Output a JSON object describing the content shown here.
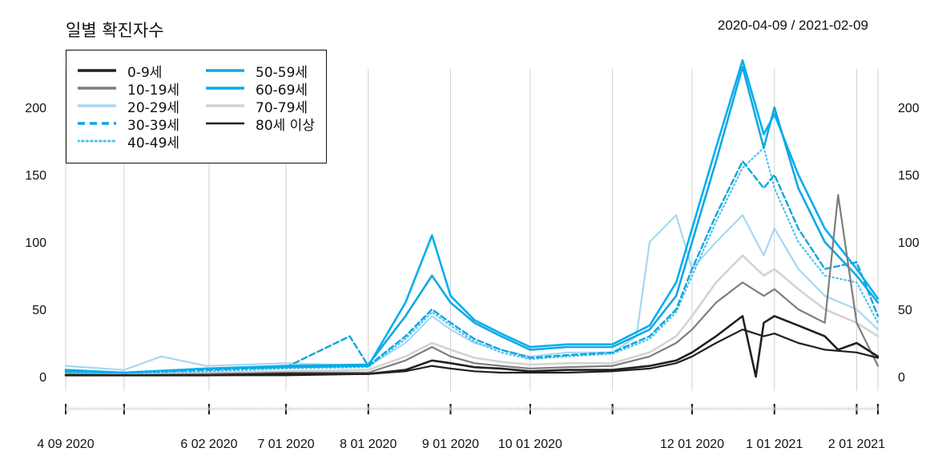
{
  "title": "일별 확진자수",
  "date_range": "2020-04-09 / 2021-02-09",
  "colors": {
    "0-9": "#231f20",
    "10-19": "#7d7d7d",
    "20-29": "#a6d8f4",
    "30-39": "#0ea5e0",
    "40-49": "#4cc3f0",
    "50-59": "#12a8e0",
    "60-69": "#00aeef",
    "70-79": "#d3d3d3",
    "80+": "#231f20"
  },
  "chart_data": {
    "type": "line",
    "title": "일별 확진자수",
    "subtitle": "2020-04-09 / 2021-02-09",
    "xlabel": "",
    "ylabel": "",
    "x_range": [
      "2020-04-09",
      "2021-02-09"
    ],
    "ylim": [
      0,
      235
    ],
    "y_ticks": [
      0,
      50,
      100,
      150,
      200
    ],
    "x_ticks": [
      {
        "date": "2020-04-09",
        "label": "4 09 2020"
      },
      {
        "date": "2020-05-01",
        "label": ""
      },
      {
        "date": "2020-06-02",
        "label": "6 02 2020"
      },
      {
        "date": "2020-07-01",
        "label": "7 01 2020"
      },
      {
        "date": "2020-08-01",
        "label": "8 01 2020"
      },
      {
        "date": "2020-09-01",
        "label": "9 01 2020"
      },
      {
        "date": "2020-10-01",
        "label": "10 01 2020"
      },
      {
        "date": "2020-11-01",
        "label": ""
      },
      {
        "date": "2020-12-01",
        "label": "12 01 2020"
      },
      {
        "date": "2021-01-01",
        "label": "1 01 2021"
      },
      {
        "date": "2021-02-01",
        "label": "2 01 2021"
      },
      {
        "date": "2021-02-09",
        "label": ""
      }
    ],
    "grid": "vertical",
    "legend_position": "top-left",
    "series": [
      {
        "name": "0-9세",
        "key": "0-9",
        "style": "solid-thick",
        "points": [
          [
            "2020-04-09",
            1
          ],
          [
            "2020-05-01",
            1
          ],
          [
            "2020-06-01",
            1
          ],
          [
            "2020-07-01",
            2
          ],
          [
            "2020-08-01",
            2
          ],
          [
            "2020-08-15",
            5
          ],
          [
            "2020-08-25",
            12
          ],
          [
            "2020-09-01",
            10
          ],
          [
            "2020-09-10",
            7
          ],
          [
            "2020-09-20",
            6
          ],
          [
            "2020-10-01",
            4
          ],
          [
            "2020-10-15",
            5
          ],
          [
            "2020-11-01",
            5
          ],
          [
            "2020-11-15",
            8
          ],
          [
            "2020-11-25",
            12
          ],
          [
            "2020-12-01",
            18
          ],
          [
            "2020-12-10",
            30
          ],
          [
            "2020-12-20",
            45
          ],
          [
            "2020-12-25",
            0
          ],
          [
            "2020-12-28",
            40
          ],
          [
            "2021-01-01",
            45
          ],
          [
            "2021-01-10",
            38
          ],
          [
            "2021-01-20",
            30
          ],
          [
            "2021-01-25",
            20
          ],
          [
            "2021-02-01",
            25
          ],
          [
            "2021-02-09",
            15
          ]
        ]
      },
      {
        "name": "10-19세",
        "key": "10-19",
        "style": "solid",
        "points": [
          [
            "2020-04-09",
            2
          ],
          [
            "2020-05-01",
            1
          ],
          [
            "2020-06-01",
            2
          ],
          [
            "2020-07-01",
            3
          ],
          [
            "2020-08-01",
            3
          ],
          [
            "2020-08-15",
            12
          ],
          [
            "2020-08-25",
            22
          ],
          [
            "2020-09-01",
            15
          ],
          [
            "2020-09-10",
            10
          ],
          [
            "2020-09-20",
            8
          ],
          [
            "2020-10-01",
            6
          ],
          [
            "2020-10-15",
            7
          ],
          [
            "2020-11-01",
            8
          ],
          [
            "2020-11-15",
            15
          ],
          [
            "2020-11-25",
            25
          ],
          [
            "2020-12-01",
            35
          ],
          [
            "2020-12-10",
            55
          ],
          [
            "2020-12-20",
            70
          ],
          [
            "2020-12-28",
            60
          ],
          [
            "2021-01-01",
            65
          ],
          [
            "2021-01-10",
            50
          ],
          [
            "2021-01-20",
            40
          ],
          [
            "2021-01-25",
            135
          ],
          [
            "2021-02-01",
            40
          ],
          [
            "2021-02-09",
            8
          ]
        ]
      },
      {
        "name": "20-29세",
        "key": "20-29",
        "style": "solid",
        "points": [
          [
            "2020-04-09",
            8
          ],
          [
            "2020-05-01",
            5
          ],
          [
            "2020-05-15",
            15
          ],
          [
            "2020-06-01",
            8
          ],
          [
            "2020-07-01",
            10
          ],
          [
            "2020-08-01",
            8
          ],
          [
            "2020-08-15",
            25
          ],
          [
            "2020-08-25",
            45
          ],
          [
            "2020-09-01",
            35
          ],
          [
            "2020-09-10",
            25
          ],
          [
            "2020-09-20",
            20
          ],
          [
            "2020-10-01",
            15
          ],
          [
            "2020-10-15",
            18
          ],
          [
            "2020-11-01",
            18
          ],
          [
            "2020-11-10",
            30
          ],
          [
            "2020-11-15",
            100
          ],
          [
            "2020-11-25",
            120
          ],
          [
            "2020-12-01",
            80
          ],
          [
            "2020-12-10",
            100
          ],
          [
            "2020-12-20",
            120
          ],
          [
            "2020-12-28",
            90
          ],
          [
            "2021-01-01",
            110
          ],
          [
            "2021-01-10",
            80
          ],
          [
            "2021-01-20",
            60
          ],
          [
            "2021-02-01",
            50
          ],
          [
            "2021-02-09",
            35
          ]
        ]
      },
      {
        "name": "30-39세",
        "key": "30-39",
        "style": "dashed",
        "points": [
          [
            "2020-04-09",
            4
          ],
          [
            "2020-05-01",
            3
          ],
          [
            "2020-06-01",
            5
          ],
          [
            "2020-07-01",
            7
          ],
          [
            "2020-07-25",
            30
          ],
          [
            "2020-08-01",
            8
          ],
          [
            "2020-08-15",
            30
          ],
          [
            "2020-08-25",
            50
          ],
          [
            "2020-09-01",
            40
          ],
          [
            "2020-09-10",
            28
          ],
          [
            "2020-09-20",
            20
          ],
          [
            "2020-10-01",
            14
          ],
          [
            "2020-10-15",
            16
          ],
          [
            "2020-11-01",
            18
          ],
          [
            "2020-11-15",
            30
          ],
          [
            "2020-11-25",
            50
          ],
          [
            "2020-12-01",
            80
          ],
          [
            "2020-12-10",
            120
          ],
          [
            "2020-12-20",
            160
          ],
          [
            "2020-12-28",
            140
          ],
          [
            "2021-01-01",
            150
          ],
          [
            "2021-01-10",
            110
          ],
          [
            "2021-01-20",
            80
          ],
          [
            "2021-02-01",
            85
          ],
          [
            "2021-02-09",
            45
          ]
        ]
      },
      {
        "name": "40-49세",
        "key": "40-49",
        "style": "dotted",
        "points": [
          [
            "2020-04-09",
            3
          ],
          [
            "2020-05-01",
            2
          ],
          [
            "2020-06-01",
            4
          ],
          [
            "2020-07-01",
            6
          ],
          [
            "2020-08-01",
            7
          ],
          [
            "2020-08-15",
            28
          ],
          [
            "2020-08-25",
            48
          ],
          [
            "2020-09-01",
            38
          ],
          [
            "2020-09-10",
            26
          ],
          [
            "2020-09-20",
            18
          ],
          [
            "2020-10-01",
            13
          ],
          [
            "2020-10-15",
            15
          ],
          [
            "2020-11-01",
            17
          ],
          [
            "2020-11-15",
            28
          ],
          [
            "2020-11-25",
            48
          ],
          [
            "2020-12-01",
            75
          ],
          [
            "2020-12-10",
            115
          ],
          [
            "2020-12-20",
            155
          ],
          [
            "2020-12-28",
            170
          ],
          [
            "2021-01-01",
            140
          ],
          [
            "2021-01-10",
            100
          ],
          [
            "2021-01-20",
            75
          ],
          [
            "2021-02-01",
            70
          ],
          [
            "2021-02-09",
            40
          ]
        ]
      },
      {
        "name": "50-59세",
        "key": "50-59",
        "style": "solid-thick",
        "points": [
          [
            "2020-04-09",
            5
          ],
          [
            "2020-05-01",
            3
          ],
          [
            "2020-06-01",
            6
          ],
          [
            "2020-07-01",
            8
          ],
          [
            "2020-08-01",
            9
          ],
          [
            "2020-08-15",
            45
          ],
          [
            "2020-08-25",
            75
          ],
          [
            "2020-09-01",
            55
          ],
          [
            "2020-09-10",
            40
          ],
          [
            "2020-09-20",
            30
          ],
          [
            "2020-10-01",
            20
          ],
          [
            "2020-10-15",
            22
          ],
          [
            "2020-11-01",
            22
          ],
          [
            "2020-11-15",
            35
          ],
          [
            "2020-11-25",
            60
          ],
          [
            "2020-12-01",
            100
          ],
          [
            "2020-12-10",
            160
          ],
          [
            "2020-12-20",
            230
          ],
          [
            "2020-12-28",
            170
          ],
          [
            "2021-01-01",
            200
          ],
          [
            "2021-01-10",
            140
          ],
          [
            "2021-01-20",
            100
          ],
          [
            "2021-02-01",
            75
          ],
          [
            "2021-02-09",
            55
          ]
        ]
      },
      {
        "name": "60-69세",
        "key": "60-69",
        "style": "solid-thick",
        "points": [
          [
            "2020-04-09",
            4
          ],
          [
            "2020-05-01",
            3
          ],
          [
            "2020-06-01",
            6
          ],
          [
            "2020-07-01",
            7
          ],
          [
            "2020-08-01",
            8
          ],
          [
            "2020-08-15",
            55
          ],
          [
            "2020-08-25",
            105
          ],
          [
            "2020-09-01",
            60
          ],
          [
            "2020-09-10",
            42
          ],
          [
            "2020-09-20",
            32
          ],
          [
            "2020-10-01",
            22
          ],
          [
            "2020-10-15",
            24
          ],
          [
            "2020-11-01",
            24
          ],
          [
            "2020-11-15",
            38
          ],
          [
            "2020-11-25",
            70
          ],
          [
            "2020-12-01",
            110
          ],
          [
            "2020-12-10",
            170
          ],
          [
            "2020-12-20",
            235
          ],
          [
            "2020-12-28",
            180
          ],
          [
            "2021-01-01",
            195
          ],
          [
            "2021-01-10",
            150
          ],
          [
            "2021-01-20",
            110
          ],
          [
            "2021-02-01",
            80
          ],
          [
            "2021-02-09",
            58
          ]
        ]
      },
      {
        "name": "70-79세",
        "key": "70-79",
        "style": "solid-thick",
        "points": [
          [
            "2020-04-09",
            2
          ],
          [
            "2020-05-01",
            2
          ],
          [
            "2020-06-01",
            3
          ],
          [
            "2020-07-01",
            4
          ],
          [
            "2020-08-01",
            5
          ],
          [
            "2020-08-15",
            15
          ],
          [
            "2020-08-25",
            25
          ],
          [
            "2020-09-01",
            20
          ],
          [
            "2020-09-10",
            14
          ],
          [
            "2020-09-20",
            11
          ],
          [
            "2020-10-01",
            9
          ],
          [
            "2020-10-15",
            10
          ],
          [
            "2020-11-01",
            10
          ],
          [
            "2020-11-15",
            18
          ],
          [
            "2020-11-25",
            30
          ],
          [
            "2020-12-01",
            45
          ],
          [
            "2020-12-10",
            70
          ],
          [
            "2020-12-20",
            90
          ],
          [
            "2020-12-28",
            75
          ],
          [
            "2021-01-01",
            80
          ],
          [
            "2021-01-10",
            65
          ],
          [
            "2021-01-20",
            50
          ],
          [
            "2021-02-01",
            40
          ],
          [
            "2021-02-09",
            30
          ]
        ]
      },
      {
        "name": "80세 이상",
        "key": "80+",
        "style": "solid",
        "points": [
          [
            "2020-04-09",
            1
          ],
          [
            "2020-05-01",
            1
          ],
          [
            "2020-06-01",
            1
          ],
          [
            "2020-07-01",
            1
          ],
          [
            "2020-08-01",
            2
          ],
          [
            "2020-08-15",
            4
          ],
          [
            "2020-08-25",
            8
          ],
          [
            "2020-09-01",
            6
          ],
          [
            "2020-09-10",
            4
          ],
          [
            "2020-09-20",
            3
          ],
          [
            "2020-10-01",
            3
          ],
          [
            "2020-10-15",
            3
          ],
          [
            "2020-11-01",
            4
          ],
          [
            "2020-11-15",
            6
          ],
          [
            "2020-11-25",
            10
          ],
          [
            "2020-12-01",
            15
          ],
          [
            "2020-12-10",
            25
          ],
          [
            "2020-12-20",
            35
          ],
          [
            "2020-12-28",
            30
          ],
          [
            "2021-01-01",
            32
          ],
          [
            "2021-01-10",
            25
          ],
          [
            "2021-01-20",
            20
          ],
          [
            "2021-02-01",
            18
          ],
          [
            "2021-02-09",
            14
          ]
        ]
      }
    ]
  }
}
